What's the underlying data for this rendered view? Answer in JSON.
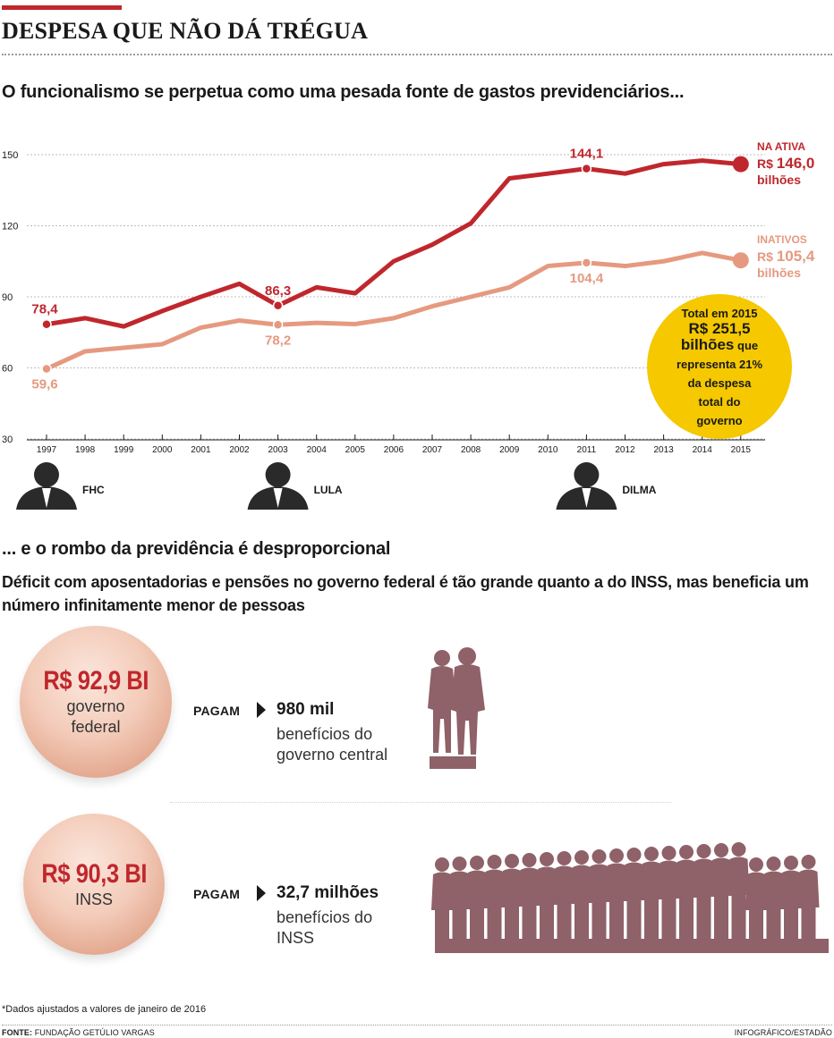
{
  "headline": "DESPESA QUE NÃO DÁ TRÉGUA",
  "section1_title": "O funcionalismo se perpetua como uma pesada fonte de gastos previdenciários...",
  "chart_data": {
    "type": "line",
    "x": [
      "1997",
      "1998",
      "1999",
      "2000",
      "2001",
      "2002",
      "2003",
      "2004",
      "2005",
      "2006",
      "2007",
      "2008",
      "2009",
      "2010",
      "2011",
      "2012",
      "2013",
      "2014",
      "2015"
    ],
    "y_ticks": [
      "150",
      "120",
      "90",
      "60",
      "30"
    ],
    "ylim": [
      30,
      155
    ],
    "grid": true,
    "series": [
      {
        "name": "NA ATIVA",
        "color": "#c0272d",
        "values": [
          78.4,
          81,
          77.5,
          84,
          90,
          95.5,
          86.3,
          94,
          91.5,
          105,
          112,
          121,
          140,
          142,
          144.1,
          142,
          146,
          147.5,
          146.0
        ]
      },
      {
        "name": "INATIVOS",
        "color": "#e59a80",
        "values": [
          59.6,
          67,
          68.5,
          70,
          77,
          80,
          78.2,
          79,
          78.5,
          81,
          86,
          90,
          94,
          103,
          104.4,
          103,
          105,
          108.5,
          105.4
        ]
      }
    ],
    "data_labels": [
      {
        "series": 0,
        "index": 0,
        "text": "78,4"
      },
      {
        "series": 0,
        "index": 6,
        "text": "86,3"
      },
      {
        "series": 0,
        "index": 14,
        "text": "144,1"
      },
      {
        "series": 1,
        "index": 0,
        "text": "59,6"
      },
      {
        "series": 1,
        "index": 6,
        "text": "78,2"
      },
      {
        "series": 1,
        "index": 14,
        "text": "104,4"
      }
    ],
    "end_labels": [
      {
        "title": "NA ATIVA",
        "prefix": "R$",
        "value": "146,0",
        "unit": "bilhões"
      },
      {
        "title": "INATIVOS",
        "prefix": "R$",
        "value": "105,4",
        "unit": "bilhões"
      }
    ],
    "callout": {
      "line1": "Total em 2015",
      "line2": "R$ 251,5",
      "line3a": "bilhões",
      "line3b": " que",
      "line4": "representa 21%",
      "line5": "da despesa",
      "line6": "total do",
      "line7": "governo"
    },
    "presidents": [
      {
        "name": "FHC",
        "index": 0
      },
      {
        "name": "LULA",
        "index": 6
      },
      {
        "name": "DILMA",
        "index": 14
      }
    ]
  },
  "section2": {
    "title": "... e o rombo da previdência é desproporcional",
    "subtitle": "Déficit com aposentadorias e pensões no governo federal é tão grande quanto a do INSS, mas beneficia um número infinitamente menor de pessoas",
    "rows": [
      {
        "value": "R$ 92,9 BI",
        "label_lines": [
          "governo",
          "federal"
        ],
        "pays": "PAGAM",
        "count": "980 mil",
        "desc_lines": [
          "benefícios do",
          "governo central"
        ]
      },
      {
        "value": "R$ 90,3 BI",
        "label_lines": [
          "INSS"
        ],
        "pays": "PAGAM",
        "count": "32,7 milhões",
        "desc_lines": [
          "benefícios do",
          "INSS"
        ]
      }
    ]
  },
  "colors": {
    "accent": "#c0272d",
    "inactive": "#e59a80",
    "callout": "#f5c800",
    "people": "#8f6168"
  },
  "footnote": "*Dados ajustados a valores de janeiro de 2016",
  "source_label": "FONTE:",
  "source_text": " FUNDAÇÃO GETÚLIO VARGAS",
  "credit": "INFOGRÁFICO/ESTADÃO"
}
